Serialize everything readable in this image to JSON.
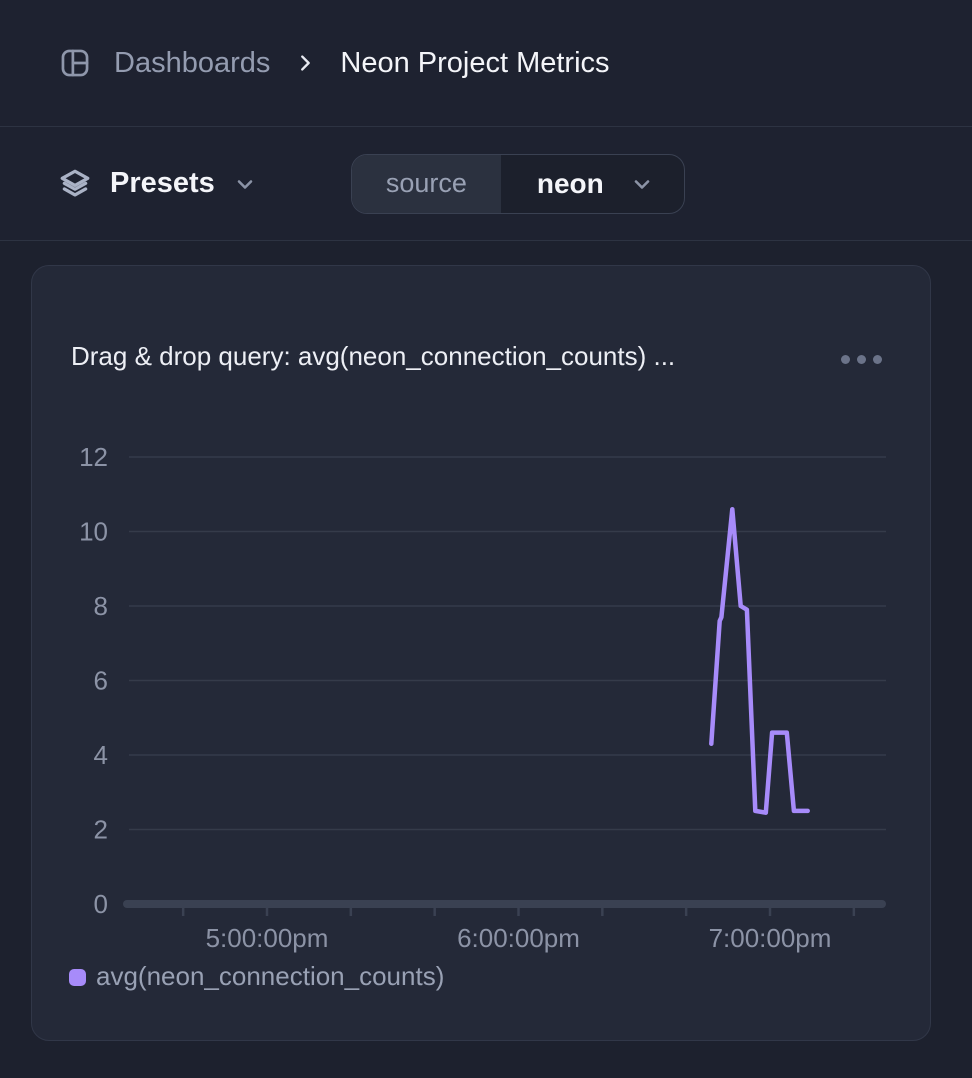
{
  "breadcrumb": {
    "root": "Dashboards",
    "current": "Neon Project Metrics"
  },
  "toolbar": {
    "presets_label": "Presets",
    "source_key": "source",
    "source_value": "neon"
  },
  "card": {
    "title": "Drag & drop query: avg(neon_connection_counts) ..."
  },
  "colors": {
    "series": "#a78bfa",
    "gridline": "#353b4a",
    "axis_bar": "#3a4152",
    "tick_label": "#8c93a6",
    "legend_text": "#99a1b4"
  },
  "chart_data": {
    "type": "line",
    "title": "Drag & drop query: avg(neon_connection_counts) ...",
    "xlabel": "",
    "ylabel": "",
    "ylim": [
      0,
      12
    ],
    "grid": "horizontal",
    "legend_position": "bottom-left",
    "y_ticks": [
      0,
      2,
      4,
      6,
      8,
      10,
      12
    ],
    "x_tick_minutes_from_5pm": [
      -20,
      0,
      20,
      40,
      60,
      80,
      100,
      120,
      140
    ],
    "x_labels": [
      {
        "minutes_from_5pm": 0,
        "text": "5:00:00pm"
      },
      {
        "minutes_from_5pm": 60,
        "text": "6:00:00pm"
      },
      {
        "minutes_from_5pm": 120,
        "text": "7:00:00pm"
      }
    ],
    "series": [
      {
        "name": "avg(neon_connection_counts)",
        "points": [
          {
            "time": "6:46pm",
            "minutes_from_5pm": 106.0,
            "value": 4.3
          },
          {
            "time": "6:48pm",
            "minutes_from_5pm": 108.0,
            "value": 7.6
          },
          {
            "time": "6:48pm",
            "minutes_from_5pm": 108.4,
            "value": 7.7
          },
          {
            "time": "6:51pm",
            "minutes_from_5pm": 111.0,
            "value": 10.6
          },
          {
            "time": "6:53pm",
            "minutes_from_5pm": 113.0,
            "value": 8.0
          },
          {
            "time": "6:54pm",
            "minutes_from_5pm": 114.5,
            "value": 7.9
          },
          {
            "time": "6:56pm",
            "minutes_from_5pm": 116.5,
            "value": 2.5
          },
          {
            "time": "6:59pm",
            "minutes_from_5pm": 119.0,
            "value": 2.45
          },
          {
            "time": "7:00pm",
            "minutes_from_5pm": 120.5,
            "value": 4.6
          },
          {
            "time": "7:04pm",
            "minutes_from_5pm": 124.0,
            "value": 4.6
          },
          {
            "time": "7:06pm",
            "minutes_from_5pm": 125.7,
            "value": 2.5
          },
          {
            "time": "7:09pm",
            "minutes_from_5pm": 129.0,
            "value": 2.5
          }
        ]
      }
    ]
  }
}
